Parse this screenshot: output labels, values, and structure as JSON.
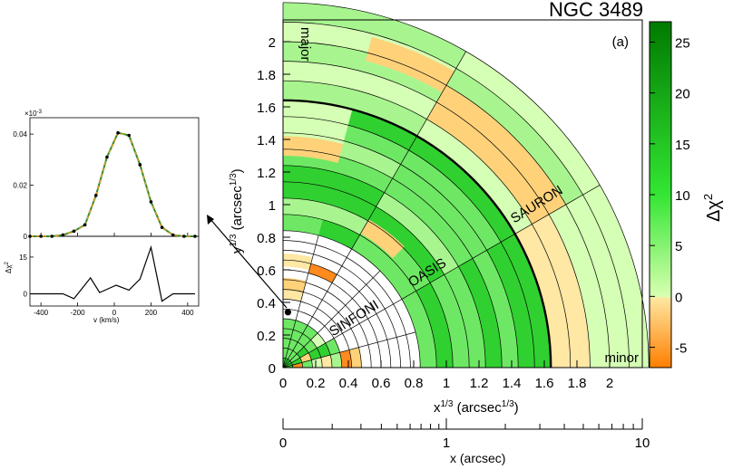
{
  "chart_data": [
    {
      "type": "heatmap",
      "title": "NGC 3489",
      "panel_label": "(a)",
      "xlabel_main": "x",
      "xlabel_sup": "1/3",
      "xlabel_unit": "(arcsec",
      "xlabel_unit_sup": "1/3",
      "xlabel_close": ")",
      "ylabel_main": "y",
      "ylabel_sup": "1/3",
      "ylabel_unit": "(arcsec",
      "ylabel_unit_sup": "1/3",
      "ylabel_close": ")",
      "xlim": [
        0,
        2.2
      ],
      "ylim": [
        0,
        2.2
      ],
      "xticks": [
        "0",
        "0.2",
        "0.4",
        "0.6",
        "0.8",
        "1",
        "1.2",
        "1.4",
        "1.6",
        "1.8",
        "2"
      ],
      "yticks": [
        "0",
        "0.2",
        "0.4",
        "0.6",
        "0.8",
        "1",
        "1.2",
        "1.4",
        "1.6",
        "1.8",
        "2"
      ],
      "sector_labels": [
        "major",
        "minor"
      ],
      "region_labels": [
        "SINFONI",
        "OASIS",
        "SAURON"
      ],
      "sector_angles_deg": [
        0,
        15,
        30,
        45,
        60,
        75,
        90
      ],
      "sinfoni_radii": [
        0.06,
        0.12,
        0.18,
        0.24,
        0.3,
        0.36,
        0.42,
        0.48,
        0.54,
        0.6,
        0.66,
        0.72,
        0.78,
        0.84
      ],
      "oasis_radii": [
        0.94,
        1.04,
        1.14,
        1.24,
        1.34,
        1.44,
        1.54,
        1.64
      ],
      "sauron_radii": [
        1.64,
        1.76,
        1.88,
        2.0,
        2.12,
        2.24
      ],
      "bold_radius": 1.64,
      "black_hole_point": [
        0.03,
        0.34
      ],
      "colorbar": {
        "label": "Δχ",
        "label_sup": "2",
        "range": [
          -7,
          27
        ],
        "ticks": [
          "-5",
          "0",
          "5",
          "10",
          "15",
          "20",
          "25"
        ]
      },
      "secondary_axis": {
        "label": "x (arcsec)",
        "ticks": [
          "0",
          "1",
          "10"
        ]
      }
    },
    {
      "type": "line",
      "xlabel": "v (km/s)",
      "top_ylabel_exp": "×10",
      "top_ylabel_exp_sup": "-3",
      "top_yticks": [
        "0",
        "0.02",
        "0.04"
      ],
      "bottom_ylabel": "Δχ",
      "bottom_ylabel_sup": "2",
      "bottom_yticks": [
        "0",
        "15"
      ],
      "xticks": [
        "-400",
        "-200",
        "0",
        "200",
        "400"
      ],
      "xlim": [
        -460,
        460
      ],
      "top_ylim": [
        0,
        0.045
      ],
      "bottom_ylim": [
        -5,
        22
      ],
      "losvd_points": {
        "x": [
          -460,
          -400,
          -340,
          -280,
          -220,
          -160,
          -100,
          -40,
          20,
          80,
          140,
          200,
          260,
          320,
          380,
          440
        ],
        "y": [
          0,
          0,
          0,
          0.0005,
          0.002,
          0.0045,
          0.016,
          0.031,
          0.0405,
          0.0395,
          0.028,
          0.0135,
          0.0035,
          0.0005,
          0,
          0
        ]
      },
      "delta_chi2_line": {
        "x": [
          -460,
          -280,
          -220,
          -130,
          -80,
          10,
          80,
          140,
          200,
          260,
          320,
          440
        ],
        "y": [
          0,
          0,
          -2,
          6.5,
          0.5,
          3.5,
          1.5,
          6,
          19,
          -3,
          0,
          0
        ]
      }
    }
  ]
}
